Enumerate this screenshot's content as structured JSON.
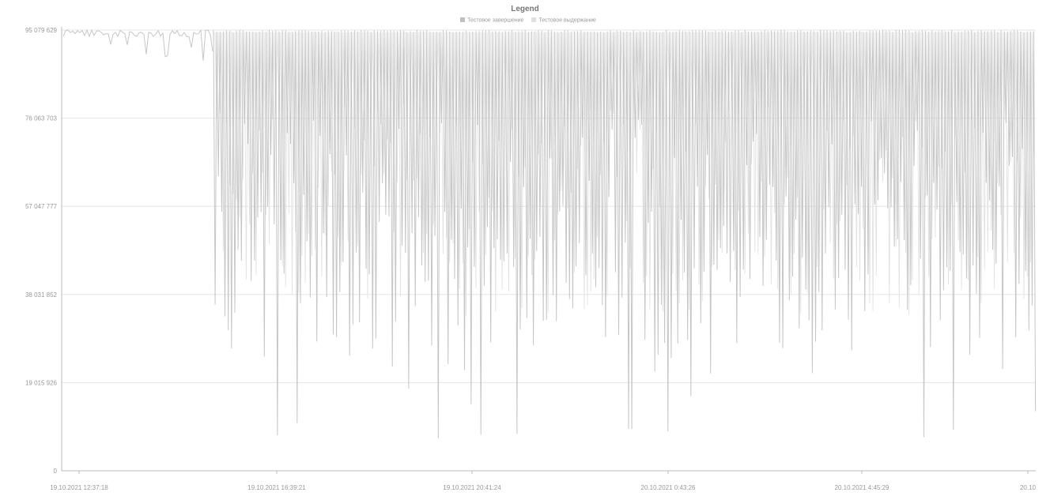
{
  "chart_data": {
    "type": "line",
    "legend_title": "Legend",
    "legend_position": "top-center",
    "series": [
      {
        "name": "Тестовое завершение",
        "color": "#c8c8c8"
      },
      {
        "name": "Тестовое выдержание",
        "color": "#dcdcdc"
      }
    ],
    "y_ticks": [
      "0",
      "19 015 926",
      "38 031 852",
      "57 047 777",
      "76 063 703",
      "95 079 629"
    ],
    "y_tick_values": [
      0,
      19015926,
      38031852,
      57047777,
      76063703,
      95079629
    ],
    "ylim": [
      0,
      95079629
    ],
    "x_ticks": [
      "19.10.2021 12:37:18",
      "19.10.2021 16:39:21",
      "19.10.2021 20:41:24",
      "20.10.2021 0:43:26",
      "20.10.2021 4:45:29",
      "20.10"
    ],
    "grid": "horizontal",
    "description_values": {
      "max_value": 95079629,
      "typical_low_min": 10000000,
      "typical_low_max": 70000000,
      "min_observed": 8000000
    }
  },
  "colors": {
    "series_main": "#c6c6c6",
    "series_light": "#e2e2e2",
    "axis": "#bbbbbb",
    "gridline": "#e6e6e6",
    "text": "#999999"
  }
}
